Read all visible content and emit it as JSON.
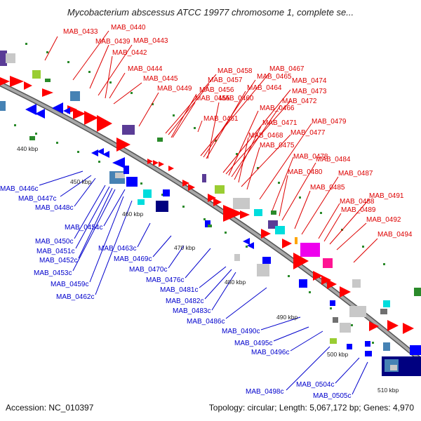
{
  "title": "Mycobacterium abscessus ATCC 19977 chromosome 1, complete se...",
  "footer": {
    "accession": "Accession: NC_010397",
    "summary": "Topology: circular; Length: 5,067,172 bp; Genes: 4,970"
  },
  "colors": {
    "forward_label": "#dd0000",
    "reverse_label": "#0000cc",
    "backbone": "#8a8a8a",
    "tick": "#2a8a2a"
  },
  "scale_ticks": [
    "440 kbp",
    "450 kbp",
    "460 kbp",
    "470 kbp",
    "480 kbp",
    "490 kbp",
    "500 kbp",
    "510 kbp"
  ],
  "forward_labels": [
    "MAB_0433",
    "MAB_0440",
    "MAB_0439",
    "MAB_0443",
    "MAB_0442",
    "MAB_0444",
    "MAB_0445",
    "MAB_0449",
    "MAB_0458",
    "MAB_0457",
    "MAB_0456",
    "MAB_0455",
    "MAB_0467",
    "MAB_0465",
    "MAB_0464",
    "MAB_0460",
    "MAB_0474",
    "MAB_0473",
    "MAB_0466",
    "MAB_0472",
    "MAB_0461",
    "MAB_0471",
    "MAB_0468",
    "MAB_0477",
    "MAB_0475",
    "MAB_0479",
    "MAB_0478",
    "MAB_0484",
    "MAB_0480",
    "MAB_0487",
    "MAB_0485",
    "MAB_0491",
    "MAB_0488",
    "MAB_0489",
    "MAB_0492",
    "MAB_0494"
  ],
  "reverse_labels": [
    "MAB_0446c",
    "MAB_0447c",
    "MAB_0448c",
    "MAB_0454c",
    "MAB_0450c",
    "MAB_0451c",
    "MAB_0452c",
    "MAB_0453c",
    "MAB_0459c",
    "MAB_0462c",
    "MAB_0463c",
    "MAB_0469c",
    "MAB_0470c",
    "MAB_0476c",
    "MAB_0481c",
    "MAB_0482c",
    "MAB_0483c",
    "MAB_0486c",
    "MAB_0490c",
    "MAB_0495c",
    "MAB_0496c",
    "MAB_0498c",
    "MAB_0504c",
    "MAB_0505c"
  ],
  "feature_colors": {
    "red": "#ff0000",
    "blue": "#0000ff",
    "navy": "#000080",
    "grey": "#c8c8c8",
    "dark_grey": "#707070",
    "lime": "#9acd32",
    "green": "#7fdf00",
    "cyan": "#00dddd",
    "purple": "#5a3c96",
    "pink": "#ff1493",
    "orange": "#ffa500",
    "steel": "#4682b4",
    "magenta": "#ee00ee"
  }
}
